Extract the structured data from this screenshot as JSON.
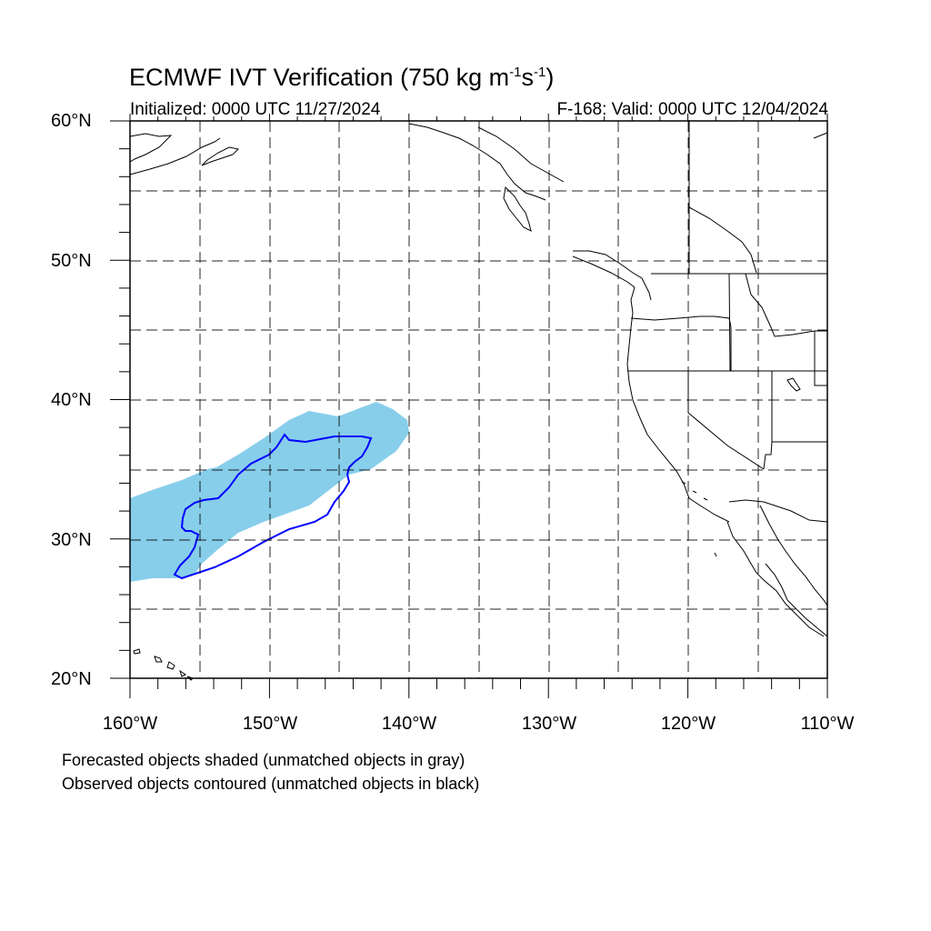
{
  "title": {
    "main": "ECMWF IVT Verification (750 kg m",
    "exp1": "-1",
    "mid": "s",
    "exp2": "-1",
    "close": ")"
  },
  "subtitle": {
    "initialized": "Initialized: 0000 UTC 11/27/2024",
    "valid": "F-168: Valid: 0000 UTC 12/04/2024"
  },
  "map": {
    "lon_range": [
      -160,
      -110
    ],
    "lat_range": [
      20,
      60
    ],
    "lat_labels": [
      "60°N",
      "50°N",
      "40°N",
      "30°N",
      "20°N"
    ],
    "lon_labels": [
      "160°W",
      "150°W",
      "140°W",
      "130°W",
      "120°W",
      "110°W"
    ],
    "gridline_style": "dashed",
    "forecast_fill_color": "#87ceeb",
    "observed_contour_color": "#0000ff",
    "coastline_color": "#000000"
  },
  "legend_notes": {
    "forecast": "Forecasted objects shaded (unmatched objects in gray)",
    "observed": "Observed objects contoured (unmatched objects in black)"
  }
}
